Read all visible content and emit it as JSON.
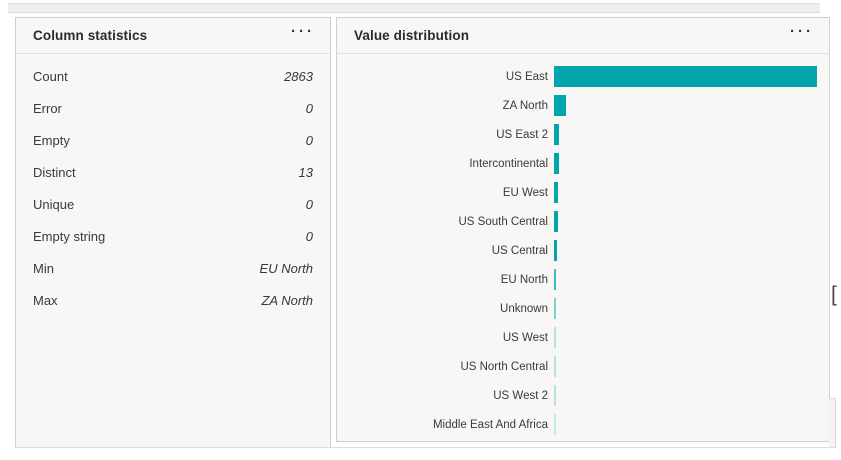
{
  "colors": {
    "accent": "#03A5AC",
    "panel_background": "#f8f7f5",
    "panel_border": "#d2d0ce",
    "text_primary": "#2b2a29",
    "text_secondary": "#3b3a39"
  },
  "stats_panel": {
    "title": "Column statistics",
    "menu_label": "···",
    "rows": [
      {
        "label": "Count",
        "value": "2863"
      },
      {
        "label": "Error",
        "value": "0"
      },
      {
        "label": "Empty",
        "value": "0"
      },
      {
        "label": "Distinct",
        "value": "13"
      },
      {
        "label": "Unique",
        "value": "0"
      },
      {
        "label": "Empty string",
        "value": "0"
      },
      {
        "label": "Min",
        "value": "EU North"
      },
      {
        "label": "Max",
        "value": "ZA North"
      }
    ]
  },
  "distribution_panel": {
    "title": "Value distribution",
    "menu_label": "···"
  },
  "chart_data": {
    "type": "bar",
    "orientation": "horizontal",
    "title": "Value distribution",
    "categories": [
      "US East",
      "ZA North",
      "US East 2",
      "Intercontinental",
      "EU West",
      "US South Central",
      "US Central",
      "EU North",
      "Unknown",
      "US West",
      "US North Central",
      "US West 2",
      "Middle East And Africa"
    ],
    "values": [
      2450,
      110,
      48,
      46,
      38,
      36,
      28,
      22,
      18,
      12,
      10,
      8,
      5
    ],
    "values_note": "estimated from bar pixel lengths; no numeric axis is shown in the visual",
    "xlim": [
      0,
      2450
    ],
    "bar_color": "#03A5AC",
    "bar_colors": [
      "#03A5AC",
      "#03A5AC",
      "#03A5AC",
      "#03A5AC",
      "#03A5AC",
      "#03A5AC",
      "#03A5AC",
      "#41B9BD",
      "#7FCED2",
      "#B5E2E4",
      "#B5E2E4",
      "#B5E2E4",
      "#C4E8E9"
    ],
    "xlabel": "",
    "ylabel": "",
    "legend": false,
    "grid": false
  },
  "artifacts": {
    "bracket": "["
  }
}
